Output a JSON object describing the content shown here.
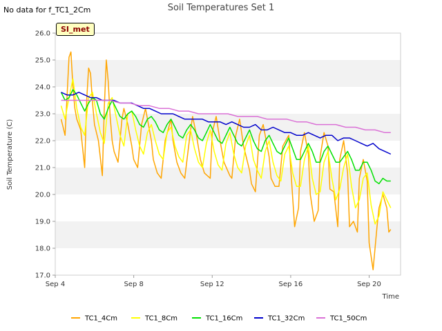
{
  "no_data_note": "No data for f_TC1_2Cm",
  "site_badge": "SI_met",
  "chart_data": {
    "type": "line",
    "title": "Soil Temperatures Set 1",
    "xlabel": "Time",
    "ylabel": "Soil Temperature (C)",
    "ylim": [
      17.0,
      26.0
    ],
    "xlim": [
      4.0,
      21.6
    ],
    "x_ticks": [
      {
        "value": 4,
        "label": "Sep 4"
      },
      {
        "value": 8,
        "label": "Sep 8"
      },
      {
        "value": 12,
        "label": "Sep 12"
      },
      {
        "value": 16,
        "label": "Sep 16"
      },
      {
        "value": 20,
        "label": "Sep 20"
      }
    ],
    "y_ticks": [
      "17.0",
      "18.0",
      "19.0",
      "20.0",
      "21.0",
      "22.0",
      "23.0",
      "24.0",
      "25.0",
      "26.0"
    ],
    "grid": "horizontal bands",
    "legend_position": "bottom",
    "series": [
      {
        "name": "TC1_4Cm",
        "color": "#FFA500",
        "x": [
          4.3,
          4.4,
          4.5,
          4.6,
          4.7,
          4.8,
          4.9,
          5.0,
          5.1,
          5.3,
          5.5,
          5.6,
          5.7,
          5.8,
          5.9,
          6.0,
          6.2,
          6.4,
          6.5,
          6.6,
          6.7,
          6.8,
          6.9,
          7.0,
          7.2,
          7.4,
          7.5,
          7.7,
          7.9,
          8.0,
          8.2,
          8.4,
          8.6,
          8.9,
          9.0,
          9.2,
          9.4,
          9.6,
          9.9,
          10.0,
          10.2,
          10.4,
          10.6,
          10.9,
          11.0,
          11.2,
          11.4,
          11.6,
          11.9,
          12.0,
          12.2,
          12.4,
          12.6,
          12.9,
          13.0,
          13.2,
          13.4,
          13.6,
          13.9,
          14.0,
          14.2,
          14.4,
          14.6,
          14.9,
          15.0,
          15.2,
          15.4,
          15.6,
          15.9,
          16.0,
          16.2,
          16.4,
          16.5,
          16.7,
          16.9,
          17.0,
          17.2,
          17.4,
          17.5,
          17.7,
          17.9,
          18.0,
          18.2,
          18.4,
          18.5,
          18.7,
          18.9,
          19.0,
          19.2,
          19.4,
          19.5,
          19.7,
          19.9,
          20.0,
          20.2,
          20.4,
          20.5,
          20.7,
          20.9,
          21.0,
          21.1
        ],
        "values": [
          22.8,
          22.5,
          22.2,
          23.6,
          25.1,
          25.3,
          24.0,
          23.2,
          22.8,
          22.4,
          21.0,
          23.5,
          24.7,
          24.5,
          23.4,
          22.6,
          22.0,
          20.7,
          23.2,
          25.0,
          24.2,
          22.9,
          22.0,
          21.6,
          21.2,
          22.8,
          23.2,
          22.6,
          21.8,
          21.3,
          21.0,
          22.6,
          23.2,
          22.0,
          21.3,
          20.8,
          20.6,
          22.0,
          22.8,
          22.0,
          21.2,
          20.8,
          20.6,
          22.4,
          22.9,
          22.2,
          21.3,
          20.8,
          20.6,
          22.3,
          22.9,
          22.0,
          21.2,
          20.7,
          20.6,
          22.2,
          22.8,
          21.8,
          20.9,
          20.4,
          20.1,
          22.2,
          22.6,
          21.4,
          20.6,
          20.3,
          20.3,
          21.8,
          22.2,
          21.0,
          18.8,
          19.5,
          21.6,
          22.3,
          21.5,
          20.0,
          19.0,
          19.4,
          21.4,
          22.3,
          21.8,
          20.2,
          20.1,
          18.8,
          21.3,
          22.0,
          20.8,
          18.8,
          19.0,
          18.6,
          20.6,
          21.3,
          20.5,
          18.2,
          17.2,
          18.8,
          19.5,
          20.0,
          19.5,
          18.6,
          18.7
        ]
      },
      {
        "name": "TC1_8Cm",
        "color": "#FFFF00",
        "x": [
          4.3,
          4.5,
          4.7,
          4.9,
          5.1,
          5.3,
          5.5,
          5.7,
          5.9,
          6.1,
          6.3,
          6.5,
          6.7,
          6.9,
          7.1,
          7.3,
          7.5,
          7.7,
          7.9,
          8.1,
          8.3,
          8.5,
          8.7,
          8.9,
          9.1,
          9.3,
          9.5,
          9.7,
          9.9,
          10.1,
          10.3,
          10.5,
          10.7,
          10.9,
          11.1,
          11.3,
          11.5,
          11.7,
          11.9,
          12.1,
          12.3,
          12.5,
          12.7,
          12.9,
          13.1,
          13.3,
          13.5,
          13.7,
          13.9,
          14.1,
          14.3,
          14.5,
          14.7,
          14.9,
          15.1,
          15.3,
          15.5,
          15.7,
          15.9,
          16.1,
          16.3,
          16.5,
          16.7,
          16.9,
          17.1,
          17.3,
          17.5,
          17.7,
          17.9,
          18.1,
          18.3,
          18.5,
          18.7,
          18.9,
          19.1,
          19.3,
          19.5,
          19.7,
          19.9,
          20.1,
          20.3,
          20.5,
          20.7,
          20.9,
          21.1
        ],
        "values": [
          23.3,
          22.8,
          23.6,
          24.3,
          23.2,
          22.5,
          22.2,
          23.6,
          23.8,
          23.0,
          22.3,
          21.9,
          23.4,
          23.6,
          22.9,
          22.2,
          21.8,
          23.0,
          23.1,
          22.4,
          21.8,
          21.5,
          22.3,
          22.6,
          22.0,
          21.5,
          21.3,
          22.3,
          22.5,
          21.8,
          21.4,
          21.2,
          22.2,
          22.4,
          21.7,
          21.2,
          21.0,
          21.9,
          22.4,
          21.6,
          21.1,
          20.9,
          21.9,
          22.3,
          21.5,
          21.0,
          20.8,
          21.8,
          22.2,
          21.3,
          20.9,
          20.6,
          21.6,
          22.0,
          21.2,
          20.7,
          20.5,
          21.5,
          21.8,
          20.8,
          20.3,
          20.3,
          21.3,
          21.8,
          20.6,
          20.0,
          20.1,
          21.2,
          21.6,
          20.6,
          19.8,
          20.2,
          21.0,
          21.5,
          20.3,
          19.5,
          19.8,
          20.6,
          20.8,
          19.6,
          18.9,
          19.2,
          20.1,
          19.8,
          19.5
        ]
      },
      {
        "name": "TC1_16Cm",
        "color": "#00E000",
        "x": [
          4.3,
          4.5,
          4.7,
          4.9,
          5.1,
          5.3,
          5.5,
          5.7,
          5.9,
          6.1,
          6.3,
          6.5,
          6.7,
          6.9,
          7.1,
          7.3,
          7.5,
          7.7,
          7.9,
          8.1,
          8.3,
          8.5,
          8.7,
          8.9,
          9.1,
          9.3,
          9.5,
          9.7,
          9.9,
          10.1,
          10.3,
          10.5,
          10.7,
          10.9,
          11.1,
          11.3,
          11.5,
          11.7,
          11.9,
          12.1,
          12.3,
          12.5,
          12.7,
          12.9,
          13.1,
          13.3,
          13.5,
          13.7,
          13.9,
          14.1,
          14.3,
          14.5,
          14.7,
          14.9,
          15.1,
          15.3,
          15.5,
          15.7,
          15.9,
          16.1,
          16.3,
          16.5,
          16.7,
          16.9,
          17.1,
          17.3,
          17.5,
          17.7,
          17.9,
          18.1,
          18.3,
          18.5,
          18.7,
          18.9,
          19.1,
          19.3,
          19.5,
          19.7,
          19.9,
          20.1,
          20.3,
          20.5,
          20.7,
          20.9,
          21.1
        ],
        "values": [
          23.8,
          23.5,
          23.6,
          23.9,
          23.7,
          23.4,
          23.1,
          23.4,
          23.6,
          23.5,
          23.0,
          22.8,
          23.2,
          23.5,
          23.2,
          22.9,
          22.8,
          23.0,
          23.1,
          22.9,
          22.6,
          22.5,
          22.8,
          22.9,
          22.7,
          22.4,
          22.3,
          22.6,
          22.8,
          22.5,
          22.2,
          22.1,
          22.4,
          22.6,
          22.4,
          22.1,
          22.0,
          22.3,
          22.6,
          22.3,
          22.0,
          21.9,
          22.2,
          22.5,
          22.2,
          21.9,
          21.8,
          22.1,
          22.4,
          22.0,
          21.7,
          21.6,
          22.0,
          22.2,
          21.9,
          21.6,
          21.5,
          21.8,
          22.1,
          21.7,
          21.3,
          21.3,
          21.6,
          21.9,
          21.6,
          21.2,
          21.2,
          21.6,
          21.8,
          21.5,
          21.2,
          21.2,
          21.4,
          21.6,
          21.3,
          20.9,
          20.9,
          21.2,
          21.2,
          20.9,
          20.5,
          20.4,
          20.6,
          20.5,
          20.5
        ]
      },
      {
        "name": "TC1_32Cm",
        "color": "#0000CC",
        "x": [
          4.3,
          4.6,
          4.9,
          5.2,
          5.5,
          5.8,
          6.1,
          6.4,
          6.7,
          7.0,
          7.3,
          7.6,
          7.9,
          8.2,
          8.5,
          8.8,
          9.1,
          9.4,
          9.7,
          10.0,
          10.3,
          10.6,
          10.9,
          11.2,
          11.5,
          11.8,
          12.1,
          12.4,
          12.7,
          13.0,
          13.3,
          13.6,
          13.9,
          14.2,
          14.5,
          14.8,
          15.1,
          15.4,
          15.7,
          16.0,
          16.3,
          16.6,
          16.9,
          17.2,
          17.5,
          17.8,
          18.1,
          18.4,
          18.7,
          19.0,
          19.3,
          19.6,
          19.9,
          20.2,
          20.5,
          20.8,
          21.1
        ],
        "values": [
          23.8,
          23.7,
          23.7,
          23.8,
          23.7,
          23.6,
          23.6,
          23.5,
          23.5,
          23.5,
          23.4,
          23.4,
          23.4,
          23.3,
          23.2,
          23.2,
          23.1,
          23.0,
          23.0,
          23.0,
          22.9,
          22.8,
          22.8,
          22.8,
          22.8,
          22.7,
          22.7,
          22.7,
          22.6,
          22.7,
          22.6,
          22.5,
          22.5,
          22.6,
          22.4,
          22.4,
          22.5,
          22.4,
          22.3,
          22.3,
          22.2,
          22.2,
          22.3,
          22.2,
          22.1,
          22.2,
          22.2,
          22.0,
          22.1,
          22.1,
          22.0,
          21.9,
          21.8,
          21.9,
          21.7,
          21.6,
          21.5
        ]
      },
      {
        "name": "TC1_50Cm",
        "color": "#DA70D6",
        "x": [
          4.3,
          4.8,
          5.3,
          5.8,
          6.3,
          6.8,
          7.3,
          7.8,
          8.3,
          8.8,
          9.3,
          9.8,
          10.3,
          10.8,
          11.3,
          11.8,
          12.3,
          12.8,
          13.3,
          13.8,
          14.3,
          14.8,
          15.3,
          15.8,
          16.3,
          16.8,
          17.3,
          17.8,
          18.3,
          18.8,
          19.3,
          19.8,
          20.3,
          20.8,
          21.1
        ],
        "values": [
          23.5,
          23.5,
          23.5,
          23.5,
          23.5,
          23.5,
          23.4,
          23.4,
          23.3,
          23.3,
          23.2,
          23.2,
          23.1,
          23.1,
          23.0,
          23.0,
          23.0,
          23.0,
          22.9,
          22.9,
          22.9,
          22.8,
          22.8,
          22.8,
          22.7,
          22.7,
          22.6,
          22.6,
          22.6,
          22.5,
          22.5,
          22.4,
          22.4,
          22.3,
          22.3
        ]
      }
    ]
  }
}
